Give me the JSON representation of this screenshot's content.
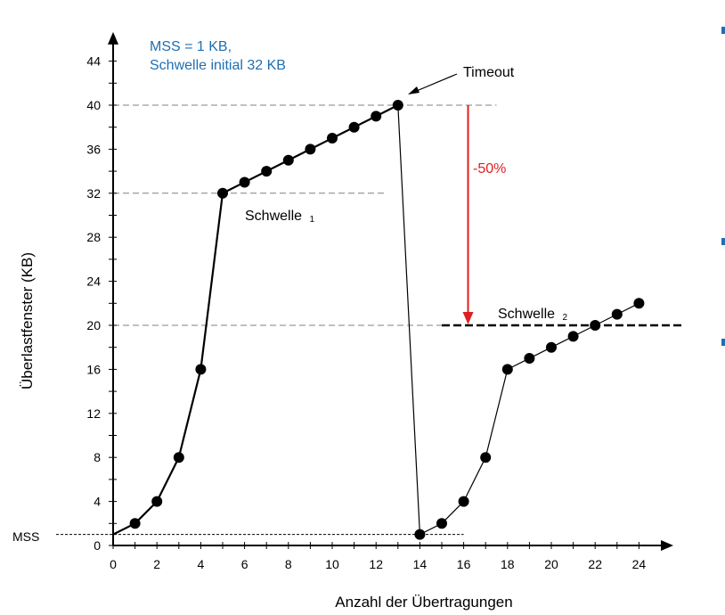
{
  "chart_data": {
    "type": "line",
    "title": "",
    "xlabel": "Anzahl der Übertragungen",
    "ylabel": "Überlastfenster (KB)",
    "xlim": [
      0,
      25
    ],
    "ylim": [
      0,
      46
    ],
    "x_ticks": [
      0,
      2,
      4,
      6,
      8,
      10,
      12,
      14,
      16,
      18,
      20,
      22,
      24
    ],
    "y_ticks": [
      0,
      4,
      8,
      12,
      16,
      20,
      24,
      28,
      32,
      36,
      40,
      44
    ],
    "series": [
      {
        "name": "Phase 1",
        "line_color": "#000000",
        "points": [
          [
            0,
            1
          ],
          [
            1,
            2
          ],
          [
            2,
            4
          ],
          [
            3,
            8
          ],
          [
            4,
            16
          ],
          [
            5,
            32
          ],
          [
            6,
            33
          ],
          [
            7,
            34
          ],
          [
            8,
            35
          ],
          [
            9,
            36
          ],
          [
            10,
            37
          ],
          [
            11,
            38
          ],
          [
            12,
            39
          ],
          [
            13,
            40
          ]
        ]
      },
      {
        "name": "Drop",
        "line_color": "#000000",
        "points": [
          [
            13,
            40
          ],
          [
            14,
            1
          ]
        ]
      },
      {
        "name": "Phase 2",
        "line_color": "#000000",
        "points": [
          [
            14,
            1
          ],
          [
            15,
            2
          ],
          [
            16,
            4
          ],
          [
            17,
            8
          ],
          [
            18,
            16
          ],
          [
            19,
            17
          ],
          [
            20,
            18
          ],
          [
            21,
            19
          ],
          [
            22,
            20
          ],
          [
            23,
            21
          ],
          [
            24,
            22
          ]
        ]
      }
    ],
    "reference_lines": [
      {
        "name": "threshold-1",
        "y": 32,
        "x_range": [
          0,
          12.5
        ]
      },
      {
        "name": "peak",
        "y": 40,
        "x_range": [
          0,
          17.5
        ]
      },
      {
        "name": "threshold-2-guide",
        "y": 20,
        "x_range": [
          0,
          15
        ]
      },
      {
        "name": "mss",
        "y": 1,
        "x_range": [
          -2.6,
          16
        ]
      }
    ],
    "threshold_2_line": {
      "y": 20,
      "x_range": [
        15,
        26
      ]
    },
    "reduction_arrow": {
      "x": 16.2,
      "from_y": 40,
      "to_y": 20,
      "label": "-50%",
      "color": "#e02020"
    },
    "annotations": {
      "info_line_1": "MSS = 1 KB,",
      "info_line_2": "Schwelle initial 32 KB",
      "info_color": "#1f6fb2",
      "timeout": "Timeout",
      "threshold_1_text": "Schwelle",
      "threshold_1_sub": "1",
      "threshold_2_text": "Schwelle",
      "threshold_2_sub": "2",
      "mss_label": "MSS"
    }
  }
}
